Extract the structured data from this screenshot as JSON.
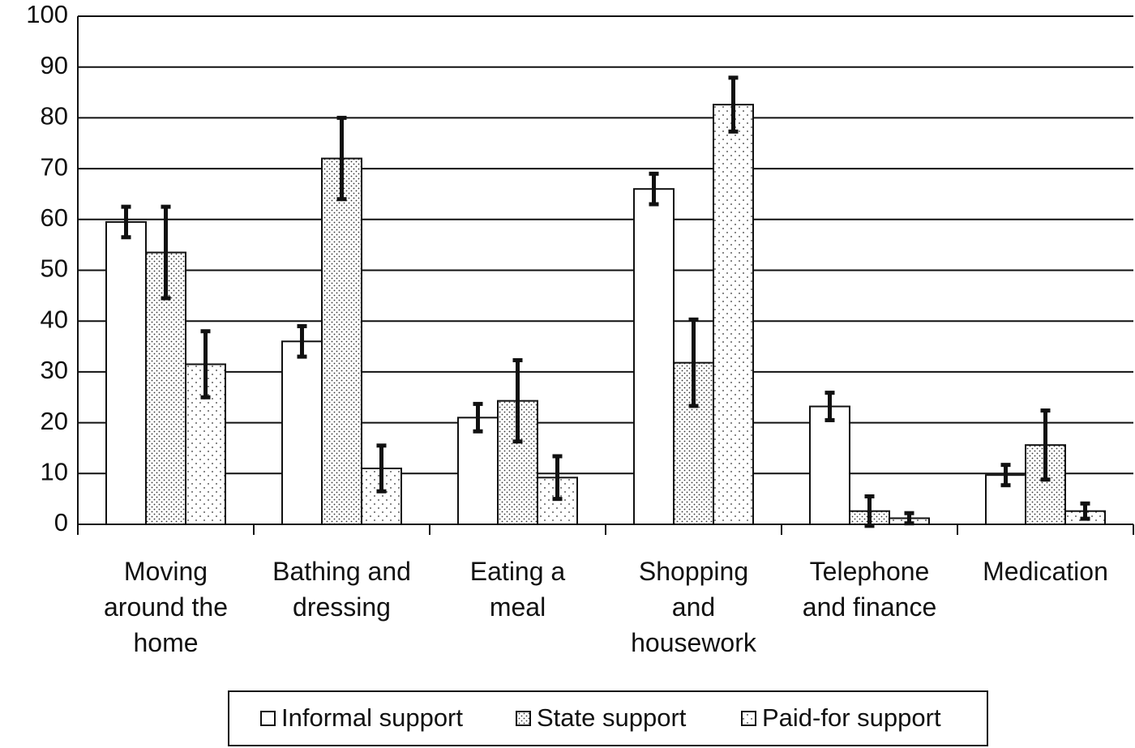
{
  "chart_data": {
    "type": "bar",
    "categories": [
      "Moving\naround the\nhome",
      "Bathing and\ndressing",
      "Eating a\nmeal",
      "Shopping\nand\nhousework",
      "Telephone\nand finance",
      "Medication"
    ],
    "series": [
      {
        "name": "Informal support",
        "color": "#ffffff",
        "pattern": "none",
        "values": [
          59.5,
          36,
          21,
          66,
          23.2,
          9.7
        ],
        "errors": [
          3,
          3,
          2.7,
          3,
          2.7,
          2
        ]
      },
      {
        "name": "State support",
        "color": "#ffffff",
        "pattern": "dense",
        "values": [
          53.5,
          72,
          24.3,
          31.8,
          2.6,
          15.6
        ],
        "errors": [
          9,
          8,
          8,
          8.5,
          2.9,
          6.8
        ]
      },
      {
        "name": "Paid-for support",
        "color": "#ffffff",
        "pattern": "sparse",
        "values": [
          31.5,
          11,
          9.2,
          82.6,
          1.2,
          2.6
        ],
        "errors": [
          6.5,
          4.5,
          4.2,
          5.3,
          1,
          1.5
        ]
      }
    ],
    "ylim": [
      0,
      100
    ],
    "yticks": [
      0,
      10,
      20,
      30,
      40,
      50,
      60,
      70,
      80,
      90,
      100
    ],
    "grid": true,
    "legend": "bottom"
  }
}
